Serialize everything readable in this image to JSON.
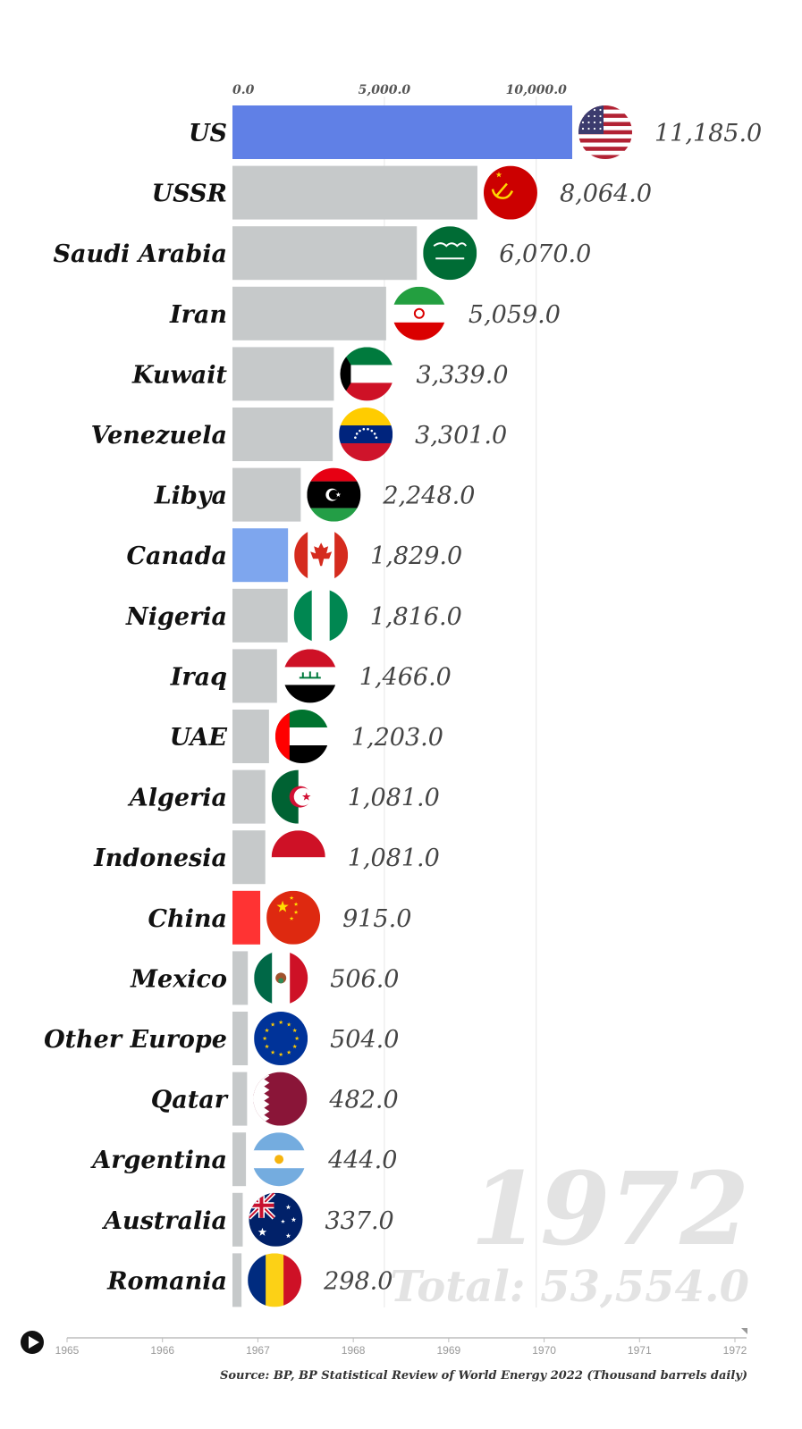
{
  "chart_data": {
    "type": "bar",
    "orientation": "horizontal",
    "year": "1972",
    "total_label": "Total: 53,554.0",
    "x_ticks": [
      0,
      5000,
      10000
    ],
    "x_tick_labels": [
      "0.0",
      "5,000.0",
      "10,000.0"
    ],
    "xlim": [
      0,
      11185
    ],
    "grid": true,
    "categories": [
      "US",
      "USSR",
      "Saudi Arabia",
      "Iran",
      "Kuwait",
      "Venezuela",
      "Libya",
      "Canada",
      "Nigeria",
      "Iraq",
      "UAE",
      "Algeria",
      "Indonesia",
      "China",
      "Mexico",
      "Other Europe",
      "Qatar",
      "Argentina",
      "Australia",
      "Romania"
    ],
    "values": [
      11185.0,
      8064.0,
      6070.0,
      5059.0,
      3339.0,
      3301.0,
      2248.0,
      1829.0,
      1816.0,
      1466.0,
      1203.0,
      1081.0,
      1081.0,
      915.0,
      506.0,
      504.0,
      482.0,
      444.0,
      337.0,
      298.0
    ],
    "value_labels": [
      "11,185.0",
      "8,064.0",
      "6,070.0",
      "5,059.0",
      "3,339.0",
      "3,301.0",
      "2,248.0",
      "1,829.0",
      "1,816.0",
      "1,466.0",
      "1,203.0",
      "1,081.0",
      "1,081.0",
      "915.0",
      "506.0",
      "504.0",
      "482.0",
      "444.0",
      "337.0",
      "298.0"
    ],
    "bar_colors": [
      "#6080e6",
      "#c6c9ca",
      "#c6c9ca",
      "#c6c9ca",
      "#c6c9ca",
      "#c6c9ca",
      "#c6c9ca",
      "#7ea6ee",
      "#c6c9ca",
      "#c6c9ca",
      "#c6c9ca",
      "#c6c9ca",
      "#c6c9ca",
      "#ff3333",
      "#c6c9ca",
      "#c6c9ca",
      "#c6c9ca",
      "#c6c9ca",
      "#c6c9ca",
      "#c6c9ca"
    ],
    "flags": [
      "us-flag-icon",
      "ussr-flag-icon",
      "saudi-arabia-flag-icon",
      "iran-flag-icon",
      "kuwait-flag-icon",
      "venezuela-flag-icon",
      "libya-flag-icon",
      "canada-flag-icon",
      "nigeria-flag-icon",
      "iraq-flag-icon",
      "uae-flag-icon",
      "algeria-flag-icon",
      "indonesia-flag-icon",
      "china-flag-icon",
      "mexico-flag-icon",
      "eu-flag-icon",
      "qatar-flag-icon",
      "argentina-flag-icon",
      "australia-flag-icon",
      "romania-flag-icon"
    ]
  },
  "timeline": {
    "years": [
      "1965",
      "1966",
      "1967",
      "1968",
      "1969",
      "1970",
      "1971",
      "1972"
    ],
    "position": 1972
  },
  "source": "Source: BP, BP Statistical Review of World Energy 2022 (Thousand barrels daily)"
}
